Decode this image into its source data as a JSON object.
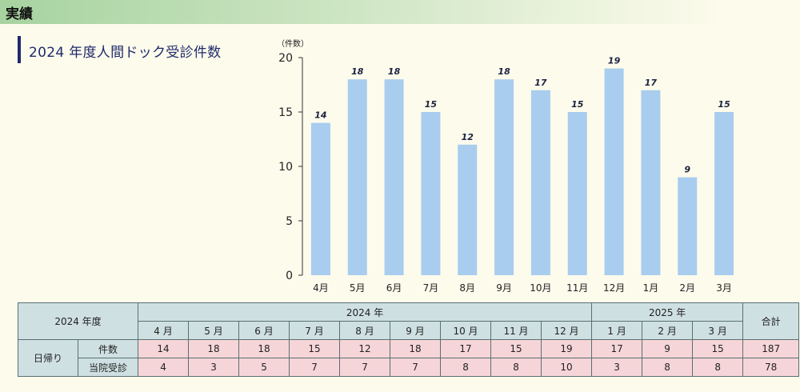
{
  "header": {
    "title": "実績"
  },
  "section": {
    "title": "2024 年度人間ドック受診件数"
  },
  "chart_data": {
    "type": "bar",
    "title": "",
    "ylabel": "（件数）",
    "xlabel": "",
    "ylim": [
      0,
      20
    ],
    "yticks": [
      0,
      5,
      10,
      15,
      20
    ],
    "grid": false,
    "categories": [
      "4月",
      "5月",
      "6月",
      "7月",
      "8月",
      "9月",
      "10月",
      "11月",
      "12月",
      "1月",
      "2月",
      "3月"
    ],
    "values": [
      14,
      18,
      18,
      15,
      12,
      18,
      17,
      15,
      19,
      17,
      9,
      15
    ],
    "bar_color": "#a8cdee"
  },
  "table": {
    "fiscal_year": "2024 年度",
    "year_2024": "2024 年",
    "year_2025": "2025 年",
    "total_label": "合計",
    "months": [
      "4 月",
      "5 月",
      "6 月",
      "7 月",
      "8 月",
      "9 月",
      "10 月",
      "11 月",
      "12 月",
      "1 月",
      "2 月",
      "3 月"
    ],
    "group_label": "日帰り",
    "rows": [
      {
        "label": "件数",
        "values": [
          "14",
          "18",
          "18",
          "15",
          "12",
          "18",
          "17",
          "15",
          "19",
          "17",
          "9",
          "15"
        ],
        "total": "187"
      },
      {
        "label": "当院受診",
        "values": [
          "4",
          "3",
          "5",
          "7",
          "7",
          "7",
          "8",
          "8",
          "10",
          "3",
          "8",
          "8"
        ],
        "total": "78"
      }
    ]
  }
}
